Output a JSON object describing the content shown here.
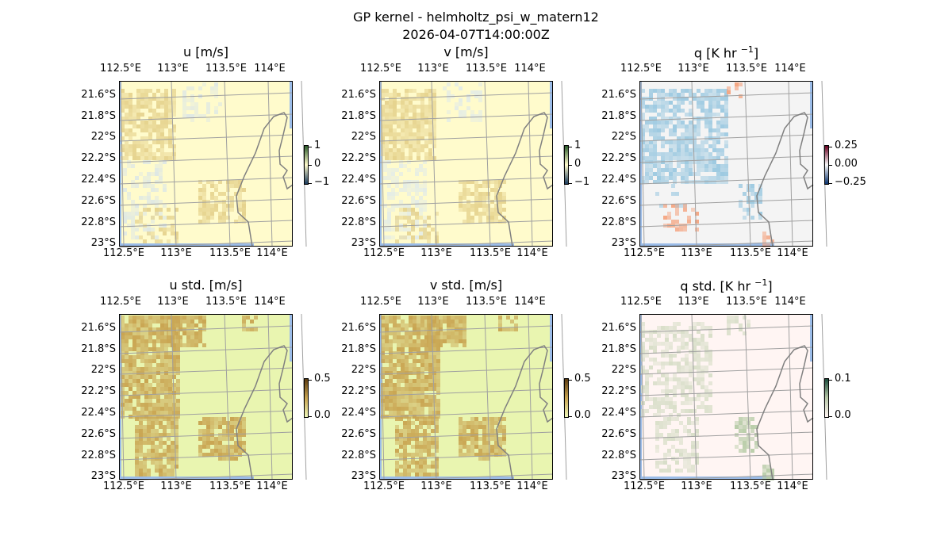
{
  "figure": {
    "title": "GP kernel - helmholtz_psi_w_matern12",
    "subtitle": "2026-04-07T14:00:00Z"
  },
  "chart_data": [
    {
      "type": "heatmap",
      "id": "u",
      "title": "u [m/s]",
      "title_sup": "",
      "title_tail": "",
      "lon_ticks": [
        "112.5°E",
        "113°E",
        "113.5°E",
        "114°E"
      ],
      "lat_ticks": [
        "21.6°S",
        "21.8°S",
        "22°S",
        "22.2°S",
        "22.4°S",
        "22.6°S",
        "22.8°S",
        "23°S"
      ],
      "colorbar": {
        "ticks": [
          "1",
          "0",
          "−1"
        ],
        "range": [
          -1,
          1
        ],
        "colors": [
          "#1a3a5c",
          "#fffbcc",
          "#2a5a2a"
        ]
      },
      "bg": "#fffbcc",
      "blob": "#e6d38e",
      "blob2": "#dfe8e4",
      "kind": "signal"
    },
    {
      "type": "heatmap",
      "id": "v",
      "title": "v [m/s]",
      "title_sup": "",
      "title_tail": "",
      "lon_ticks": [
        "112.5°E",
        "113°E",
        "113.5°E",
        "114°E"
      ],
      "lat_ticks": [
        "21.6°S",
        "21.8°S",
        "22°S",
        "22.2°S",
        "22.4°S",
        "22.6°S",
        "22.8°S",
        "23°S"
      ],
      "colorbar": {
        "ticks": [
          "1",
          "0",
          "−1"
        ],
        "range": [
          -1,
          1
        ],
        "colors": [
          "#1a3a5c",
          "#fffbcc",
          "#2a5a2a"
        ]
      },
      "bg": "#fffbcc",
      "blob": "#e6d38e",
      "blob2": "#e4ece6",
      "kind": "signal"
    },
    {
      "type": "heatmap",
      "id": "q",
      "title": "q [K hr ",
      "title_sup": "−1",
      "title_tail": "]",
      "lon_ticks": [
        "112.5°E",
        "113°E",
        "113.5°E",
        "114°E"
      ],
      "lat_ticks": [
        "21.6°S",
        "21.8°S",
        "22°S",
        "22.2°S",
        "22.4°S",
        "22.6°S",
        "22.8°S",
        "23°S"
      ],
      "colorbar": {
        "ticks": [
          "0.25",
          "0.00",
          "−0.25"
        ],
        "range": [
          -0.35,
          0.35
        ],
        "colors": [
          "#08306b",
          "#f7f7f7",
          "#67001f"
        ]
      },
      "bg": "#f4f4f4",
      "blob": "#9ecae1",
      "blob2": "#f4a582",
      "kind": "q"
    },
    {
      "type": "heatmap",
      "id": "u_std",
      "title": "u std. [m/s]",
      "title_sup": "",
      "title_tail": "",
      "lon_ticks": [
        "112.5°E",
        "113°E",
        "113.5°E",
        "114°E"
      ],
      "lat_ticks": [
        "21.6°S",
        "21.8°S",
        "22°S",
        "22.2°S",
        "22.4°S",
        "22.6°S",
        "22.8°S",
        "23°S"
      ],
      "colorbar": {
        "ticks": [
          "0.5",
          "0.0"
        ],
        "range": [
          0,
          0.5
        ],
        "colors": [
          "#eef7b8",
          "#c8a450",
          "#5a3a10"
        ]
      },
      "bg": "#e9f5b0",
      "blob": "#c9a552",
      "blob2": "#c9a552",
      "kind": "std"
    },
    {
      "type": "heatmap",
      "id": "v_std",
      "title": "v std. [m/s]",
      "title_sup": "",
      "title_tail": "",
      "lon_ticks": [
        "112.5°E",
        "113°E",
        "113.5°E",
        "114°E"
      ],
      "lat_ticks": [
        "21.6°S",
        "21.8°S",
        "22°S",
        "22.2°S",
        "22.4°S",
        "22.6°S",
        "22.8°S",
        "23°S"
      ],
      "colorbar": {
        "ticks": [
          "0.5",
          "0.0"
        ],
        "range": [
          0,
          0.5
        ],
        "colors": [
          "#eef7b8",
          "#c8a450",
          "#5a3a10"
        ]
      },
      "bg": "#e9f5b0",
      "blob": "#c9a552",
      "blob2": "#c9a552",
      "kind": "std"
    },
    {
      "type": "heatmap",
      "id": "q_std",
      "title": "q std. [K hr ",
      "title_sup": "−1",
      "title_tail": "]",
      "lon_ticks": [
        "112.5°E",
        "113°E",
        "113.5°E",
        "114°E"
      ],
      "lat_ticks": [
        "21.6°S",
        "21.8°S",
        "22°S",
        "22.2°S",
        "22.4°S",
        "22.6°S",
        "22.8°S",
        "23°S"
      ],
      "colorbar": {
        "ticks": [
          "0.1",
          "0.0"
        ],
        "range": [
          0,
          0.12
        ],
        "colors": [
          "#fff5f2",
          "#b8c8a8",
          "#1a4a3a"
        ]
      },
      "bg": "#fff5f3",
      "blob": "#d8dec8",
      "blob2": "#b8cca8",
      "kind": "qstd"
    }
  ]
}
